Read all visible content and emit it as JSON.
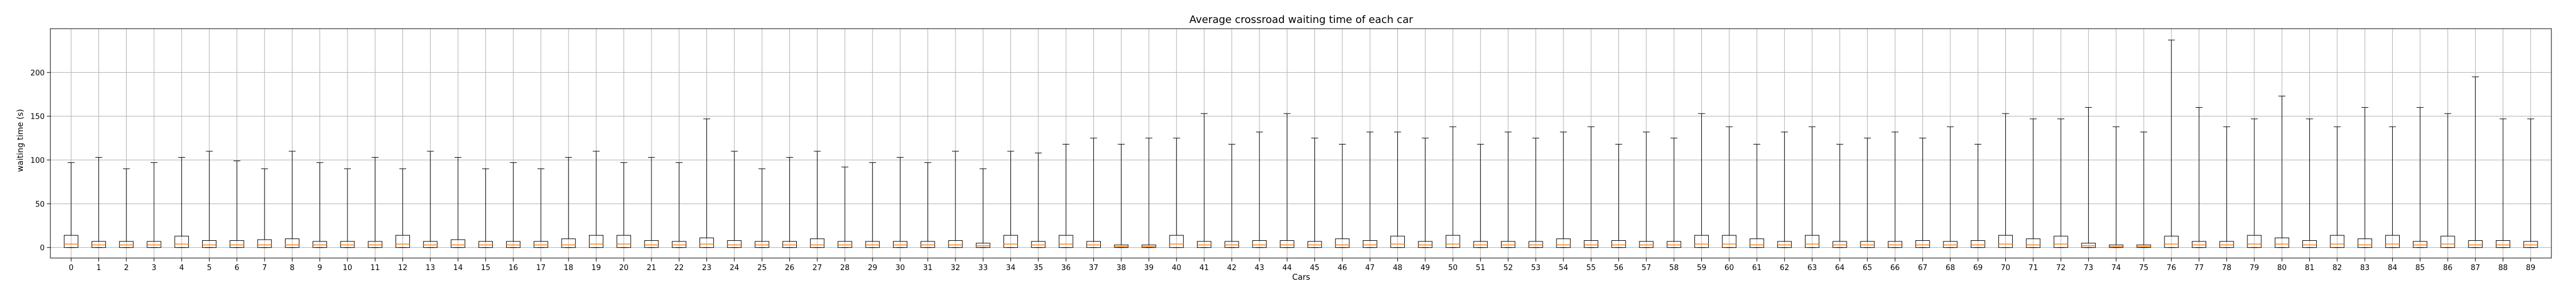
{
  "chart_data": {
    "type": "boxplot",
    "title": "Average crossroad waiting time of each car",
    "xlabel": "Cars",
    "ylabel": "waiting time (s)",
    "ylim": [
      -12,
      250
    ],
    "yticks": [
      0,
      50,
      100,
      150,
      200
    ],
    "grid": true,
    "colors": {
      "box": "#000000",
      "median": "#ff7f0e",
      "grid": "#b0b0b0"
    },
    "categories": [
      "0",
      "1",
      "2",
      "3",
      "4",
      "5",
      "6",
      "7",
      "8",
      "9",
      "10",
      "11",
      "12",
      "13",
      "14",
      "15",
      "16",
      "17",
      "18",
      "19",
      "20",
      "21",
      "22",
      "23",
      "24",
      "25",
      "26",
      "27",
      "28",
      "29",
      "30",
      "31",
      "32",
      "33",
      "34",
      "35",
      "36",
      "37",
      "38",
      "39",
      "40",
      "41",
      "42",
      "43",
      "44",
      "45",
      "46",
      "47",
      "48",
      "49",
      "50",
      "51",
      "52",
      "53",
      "54",
      "55",
      "56",
      "57",
      "58",
      "59",
      "60",
      "61",
      "62",
      "63",
      "64",
      "65",
      "66",
      "67",
      "68",
      "69",
      "70",
      "71",
      "72",
      "73",
      "74",
      "75",
      "76",
      "77",
      "78",
      "79",
      "80",
      "81",
      "82",
      "83",
      "84",
      "85",
      "86",
      "87",
      "88",
      "89"
    ],
    "box_stats": [
      {
        "whislo": 0,
        "q1": 0,
        "med": 4,
        "q3": 14,
        "whishi": 97
      },
      {
        "whislo": 0,
        "q1": 0,
        "med": 3,
        "q3": 7,
        "whishi": 103
      },
      {
        "whislo": 0,
        "q1": 0,
        "med": 3,
        "q3": 7,
        "whishi": 90
      },
      {
        "whislo": 0,
        "q1": 0,
        "med": 3,
        "q3": 7,
        "whishi": 97
      },
      {
        "whislo": 0,
        "q1": 0,
        "med": 4,
        "q3": 13,
        "whishi": 103
      },
      {
        "whislo": 0,
        "q1": 0,
        "med": 3,
        "q3": 8,
        "whishi": 110
      },
      {
        "whislo": 0,
        "q1": 0,
        "med": 3,
        "q3": 8,
        "whishi": 99
      },
      {
        "whislo": 0,
        "q1": 0,
        "med": 3,
        "q3": 9,
        "whishi": 90
      },
      {
        "whislo": 0,
        "q1": 0,
        "med": 3,
        "q3": 10,
        "whishi": 110
      },
      {
        "whislo": 0,
        "q1": 0,
        "med": 3,
        "q3": 7,
        "whishi": 97
      },
      {
        "whislo": 0,
        "q1": 0,
        "med": 3,
        "q3": 7,
        "whishi": 90
      },
      {
        "whislo": 0,
        "q1": 0,
        "med": 3,
        "q3": 7,
        "whishi": 103
      },
      {
        "whislo": 0,
        "q1": 0,
        "med": 4,
        "q3": 14,
        "whishi": 90
      },
      {
        "whislo": 0,
        "q1": 0,
        "med": 3,
        "q3": 7,
        "whishi": 110
      },
      {
        "whislo": 0,
        "q1": 0,
        "med": 3,
        "q3": 9,
        "whishi": 103
      },
      {
        "whislo": 0,
        "q1": 0,
        "med": 3,
        "q3": 7,
        "whishi": 90
      },
      {
        "whislo": 0,
        "q1": 0,
        "med": 3,
        "q3": 7,
        "whishi": 97
      },
      {
        "whislo": 0,
        "q1": 0,
        "med": 3,
        "q3": 7,
        "whishi": 90
      },
      {
        "whislo": 0,
        "q1": 0,
        "med": 3,
        "q3": 10,
        "whishi": 103
      },
      {
        "whislo": 0,
        "q1": 0,
        "med": 4,
        "q3": 14,
        "whishi": 110
      },
      {
        "whislo": 0,
        "q1": 0,
        "med": 4,
        "q3": 14,
        "whishi": 97
      },
      {
        "whislo": 0,
        "q1": 0,
        "med": 3,
        "q3": 8,
        "whishi": 103
      },
      {
        "whislo": 0,
        "q1": 0,
        "med": 3,
        "q3": 7,
        "whishi": 97
      },
      {
        "whislo": 0,
        "q1": 0,
        "med": 4,
        "q3": 11,
        "whishi": 147
      },
      {
        "whislo": 0,
        "q1": 0,
        "med": 3,
        "q3": 8,
        "whishi": 110
      },
      {
        "whislo": 0,
        "q1": 0,
        "med": 3,
        "q3": 7,
        "whishi": 90
      },
      {
        "whislo": 0,
        "q1": 0,
        "med": 3,
        "q3": 7,
        "whishi": 103
      },
      {
        "whislo": 0,
        "q1": 0,
        "med": 3,
        "q3": 10,
        "whishi": 110
      },
      {
        "whislo": 0,
        "q1": 0,
        "med": 3,
        "q3": 7,
        "whishi": 92
      },
      {
        "whislo": 0,
        "q1": 0,
        "med": 3,
        "q3": 7,
        "whishi": 97
      },
      {
        "whislo": 0,
        "q1": 0,
        "med": 3,
        "q3": 7,
        "whishi": 103
      },
      {
        "whislo": 0,
        "q1": 0,
        "med": 3,
        "q3": 7,
        "whishi": 97
      },
      {
        "whislo": 0,
        "q1": 0,
        "med": 3,
        "q3": 8,
        "whishi": 110
      },
      {
        "whislo": 0,
        "q1": 0,
        "med": 2,
        "q3": 5,
        "whishi": 90
      },
      {
        "whislo": 0,
        "q1": 0,
        "med": 4,
        "q3": 14,
        "whishi": 110
      },
      {
        "whislo": 0,
        "q1": 0,
        "med": 3,
        "q3": 7,
        "whishi": 108
      },
      {
        "whislo": 0,
        "q1": 0,
        "med": 4,
        "q3": 14,
        "whishi": 118
      },
      {
        "whislo": 0,
        "q1": 0,
        "med": 3,
        "q3": 7,
        "whishi": 125
      },
      {
        "whislo": 0,
        "q1": 0,
        "med": 1,
        "q3": 3,
        "whishi": 118
      },
      {
        "whislo": 0,
        "q1": 0,
        "med": 1,
        "q3": 3,
        "whishi": 125
      },
      {
        "whislo": 0,
        "q1": 0,
        "med": 4,
        "q3": 14,
        "whishi": 125
      },
      {
        "whislo": 0,
        "q1": 0,
        "med": 3,
        "q3": 7,
        "whishi": 153
      },
      {
        "whislo": 0,
        "q1": 0,
        "med": 3,
        "q3": 7,
        "whishi": 118
      },
      {
        "whislo": 0,
        "q1": 0,
        "med": 3,
        "q3": 8,
        "whishi": 132
      },
      {
        "whislo": 0,
        "q1": 0,
        "med": 3,
        "q3": 8,
        "whishi": 153
      },
      {
        "whislo": 0,
        "q1": 0,
        "med": 3,
        "q3": 7,
        "whishi": 125
      },
      {
        "whislo": 0,
        "q1": 0,
        "med": 3,
        "q3": 10,
        "whishi": 118
      },
      {
        "whislo": 0,
        "q1": 0,
        "med": 3,
        "q3": 8,
        "whishi": 132
      },
      {
        "whislo": 0,
        "q1": 0,
        "med": 4,
        "q3": 13,
        "whishi": 132
      },
      {
        "whislo": 0,
        "q1": 0,
        "med": 3,
        "q3": 7,
        "whishi": 125
      },
      {
        "whislo": 0,
        "q1": 0,
        "med": 4,
        "q3": 14,
        "whishi": 138
      },
      {
        "whislo": 0,
        "q1": 0,
        "med": 3,
        "q3": 7,
        "whishi": 118
      },
      {
        "whislo": 0,
        "q1": 0,
        "med": 3,
        "q3": 7,
        "whishi": 132
      },
      {
        "whislo": 0,
        "q1": 0,
        "med": 3,
        "q3": 7,
        "whishi": 125
      },
      {
        "whislo": 0,
        "q1": 0,
        "med": 3,
        "q3": 10,
        "whishi": 132
      },
      {
        "whislo": 0,
        "q1": 0,
        "med": 3,
        "q3": 8,
        "whishi": 138
      },
      {
        "whislo": 0,
        "q1": 0,
        "med": 3,
        "q3": 8,
        "whishi": 118
      },
      {
        "whislo": 0,
        "q1": 0,
        "med": 3,
        "q3": 7,
        "whishi": 132
      },
      {
        "whislo": 0,
        "q1": 0,
        "med": 3,
        "q3": 7,
        "whishi": 125
      },
      {
        "whislo": 0,
        "q1": 0,
        "med": 4,
        "q3": 14,
        "whishi": 153
      },
      {
        "whislo": 0,
        "q1": 0,
        "med": 4,
        "q3": 14,
        "whishi": 138
      },
      {
        "whislo": 0,
        "q1": 0,
        "med": 3,
        "q3": 10,
        "whishi": 118
      },
      {
        "whislo": 0,
        "q1": 0,
        "med": 3,
        "q3": 7,
        "whishi": 132
      },
      {
        "whislo": 0,
        "q1": 0,
        "med": 4,
        "q3": 14,
        "whishi": 138
      },
      {
        "whislo": 0,
        "q1": 0,
        "med": 3,
        "q3": 7,
        "whishi": 118
      },
      {
        "whislo": 0,
        "q1": 0,
        "med": 3,
        "q3": 7,
        "whishi": 125
      },
      {
        "whislo": 0,
        "q1": 0,
        "med": 3,
        "q3": 7,
        "whishi": 132
      },
      {
        "whislo": 0,
        "q1": 0,
        "med": 3,
        "q3": 8,
        "whishi": 125
      },
      {
        "whislo": 0,
        "q1": 0,
        "med": 3,
        "q3": 7,
        "whishi": 138
      },
      {
        "whislo": 0,
        "q1": 0,
        "med": 3,
        "q3": 8,
        "whishi": 118
      },
      {
        "whislo": 0,
        "q1": 0,
        "med": 4,
        "q3": 14,
        "whishi": 153
      },
      {
        "whislo": 0,
        "q1": 0,
        "med": 3,
        "q3": 10,
        "whishi": 147
      },
      {
        "whislo": 0,
        "q1": 0,
        "med": 4,
        "q3": 13,
        "whishi": 147
      },
      {
        "whislo": 0,
        "q1": 0,
        "med": 2,
        "q3": 5,
        "whishi": 160
      },
      {
        "whislo": 0,
        "q1": 0,
        "med": 1,
        "q3": 3,
        "whishi": 138
      },
      {
        "whislo": 0,
        "q1": 0,
        "med": 1,
        "q3": 3,
        "whishi": 132
      },
      {
        "whislo": 0,
        "q1": 0,
        "med": 4,
        "q3": 13,
        "whishi": 237
      },
      {
        "whislo": 0,
        "q1": 0,
        "med": 3,
        "q3": 7,
        "whishi": 160
      },
      {
        "whislo": 0,
        "q1": 0,
        "med": 3,
        "q3": 7,
        "whishi": 138
      },
      {
        "whislo": 0,
        "q1": 0,
        "med": 4,
        "q3": 14,
        "whishi": 147
      },
      {
        "whislo": 0,
        "q1": 0,
        "med": 4,
        "q3": 11,
        "whishi": 173
      },
      {
        "whislo": 0,
        "q1": 0,
        "med": 3,
        "q3": 8,
        "whishi": 147
      },
      {
        "whislo": 0,
        "q1": 0,
        "med": 4,
        "q3": 14,
        "whishi": 138
      },
      {
        "whislo": 0,
        "q1": 0,
        "med": 3,
        "q3": 10,
        "whishi": 160
      },
      {
        "whislo": 0,
        "q1": 0,
        "med": 4,
        "q3": 14,
        "whishi": 138
      },
      {
        "whislo": 0,
        "q1": 0,
        "med": 3,
        "q3": 7,
        "whishi": 160
      },
      {
        "whislo": 0,
        "q1": 0,
        "med": 4,
        "q3": 13,
        "whishi": 153
      },
      {
        "whislo": 0,
        "q1": 0,
        "med": 3,
        "q3": 8,
        "whishi": 195
      },
      {
        "whislo": 0,
        "q1": 0,
        "med": 3,
        "q3": 8,
        "whishi": 147
      },
      {
        "whislo": 0,
        "q1": 0,
        "med": 3,
        "q3": 7,
        "whishi": 147
      }
    ]
  }
}
